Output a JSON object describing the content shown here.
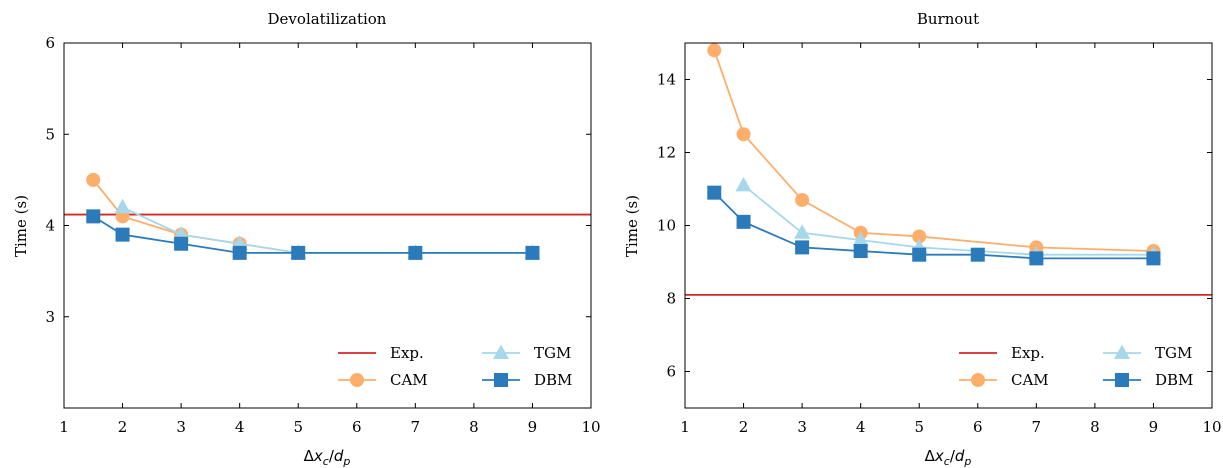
{
  "chart_data": [
    {
      "type": "line",
      "title": "Devolatilization",
      "xlabel": "Δx_c/d_p",
      "ylabel": "Time (s)",
      "xlim": [
        1,
        10
      ],
      "ylim": [
        2,
        6
      ],
      "xticks": [
        "1",
        "2",
        "3",
        "4",
        "5",
        "6",
        "7",
        "8",
        "9",
        "10"
      ],
      "yticks": [
        "3",
        "4",
        "5",
        "6"
      ],
      "grid": false,
      "legend_position": "bottom-right",
      "series": [
        {
          "name": "Exp.",
          "kind": "hline",
          "y": 4.12,
          "color": "#d62728"
        },
        {
          "name": "CAM",
          "marker": "circle",
          "color": "#fdae6b",
          "x": [
            1.5,
            2,
            3,
            4,
            5
          ],
          "values": [
            4.5,
            4.1,
            3.9,
            3.8,
            3.7
          ]
        },
        {
          "name": "TGM",
          "marker": "triangle",
          "color": "#a6d7ea",
          "x": [
            2,
            3,
            4,
            5,
            7,
            9
          ],
          "values": [
            4.2,
            3.9,
            3.8,
            3.7,
            3.7,
            3.7
          ]
        },
        {
          "name": "DBM",
          "marker": "square",
          "color": "#2b7bba",
          "x": [
            1.5,
            2,
            3,
            4,
            5,
            7,
            9
          ],
          "values": [
            4.1,
            3.9,
            3.8,
            3.7,
            3.7,
            3.7,
            3.7
          ]
        }
      ]
    },
    {
      "type": "line",
      "title": "Burnout",
      "xlabel": "Δx_c/d_p",
      "ylabel": "Time (s)",
      "xlim": [
        1,
        10
      ],
      "ylim": [
        5,
        15
      ],
      "xticks": [
        "1",
        "2",
        "3",
        "4",
        "5",
        "6",
        "7",
        "8",
        "9",
        "10"
      ],
      "yticks": [
        "6",
        "8",
        "10",
        "12",
        "14"
      ],
      "grid": false,
      "legend_position": "bottom-right",
      "series": [
        {
          "name": "Exp.",
          "kind": "hline",
          "y": 8.1,
          "color": "#d62728"
        },
        {
          "name": "CAM",
          "marker": "circle",
          "color": "#fdae6b",
          "x": [
            1.5,
            2,
            3,
            4,
            5,
            7,
            9
          ],
          "values": [
            14.8,
            12.5,
            10.7,
            9.8,
            9.7,
            9.4,
            9.3
          ]
        },
        {
          "name": "TGM",
          "marker": "triangle",
          "color": "#a6d7ea",
          "x": [
            2,
            3,
            4,
            5,
            7,
            9
          ],
          "values": [
            11.1,
            9.8,
            9.6,
            9.4,
            9.2,
            9.2
          ]
        },
        {
          "name": "DBM",
          "marker": "square",
          "color": "#2b7bba",
          "x": [
            1.5,
            2,
            3,
            4,
            5,
            6,
            7,
            9
          ],
          "values": [
            10.9,
            10.1,
            9.4,
            9.3,
            9.2,
            9.2,
            9.1,
            9.1
          ]
        }
      ]
    }
  ]
}
